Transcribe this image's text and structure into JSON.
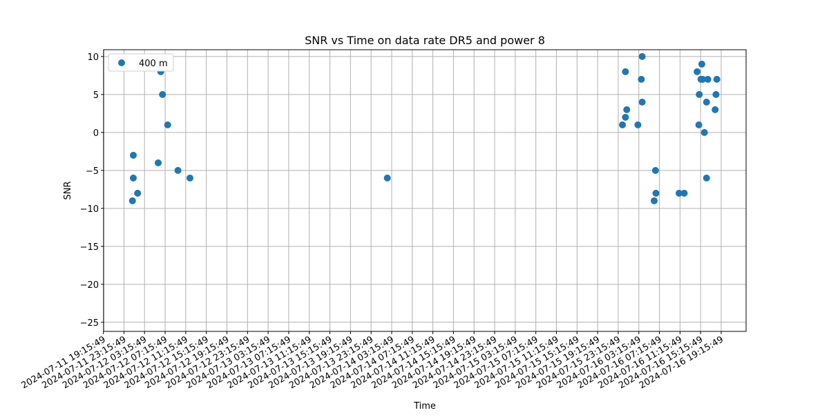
{
  "chart_data": {
    "type": "scatter",
    "title": "SNR vs Time on data rate DR5 and power 8",
    "xlabel": "Time",
    "ylabel": "SNR",
    "grid": true,
    "legend_position": "top-left",
    "x_axis": {
      "type": "time",
      "range": [
        "2024-07-11 19:19",
        "2024-07-17 00:06"
      ],
      "tick_labels": [
        "2024-07-11 19:15:49",
        "2024-07-11 23:15:49",
        "2024-07-12 03:15:49",
        "2024-07-12 07:15:49",
        "2024-07-12 11:15:49",
        "2024-07-12 15:15:49",
        "2024-07-12 19:15:49",
        "2024-07-12 23:15:49",
        "2024-07-13 03:15:49",
        "2024-07-13 07:15:49",
        "2024-07-13 11:15:49",
        "2024-07-13 15:15:49",
        "2024-07-13 19:15:49",
        "2024-07-13 23:15:49",
        "2024-07-14 03:15:49",
        "2024-07-14 07:15:49",
        "2024-07-14 11:15:49",
        "2024-07-14 15:15:49",
        "2024-07-14 19:15:49",
        "2024-07-14 23:15:49",
        "2024-07-15 03:15:49",
        "2024-07-15 07:15:49",
        "2024-07-15 11:15:49",
        "2024-07-15 15:15:49",
        "2024-07-15 19:15:49",
        "2024-07-15 23:15:49",
        "2024-07-16 03:15:49",
        "2024-07-16 07:15:49",
        "2024-07-16 11:15:49",
        "2024-07-16 15:15:49",
        "2024-07-16 19:15:49"
      ]
    },
    "y_axis": {
      "range": [
        -26.2,
        10.9
      ],
      "ticks": [
        10,
        5,
        0,
        -5,
        -10,
        -15,
        -20,
        -25
      ],
      "tick_labels": [
        "10",
        "5",
        "0",
        "−5",
        "−10",
        "−15",
        "−20",
        "−25"
      ]
    },
    "series": [
      {
        "name": "400 m",
        "color": "#1f77b4",
        "marker": "circle",
        "points": [
          {
            "x": "2024-07-12 00:55",
            "y": -9
          },
          {
            "x": "2024-07-12 01:05",
            "y": -3
          },
          {
            "x": "2024-07-12 01:05",
            "y": -6
          },
          {
            "x": "2024-07-12 01:55",
            "y": -8
          },
          {
            "x": "2024-07-12 05:55",
            "y": -4
          },
          {
            "x": "2024-07-12 06:25",
            "y": 8
          },
          {
            "x": "2024-07-12 06:45",
            "y": 5
          },
          {
            "x": "2024-07-12 07:45",
            "y": 1
          },
          {
            "x": "2024-07-12 09:45",
            "y": -5
          },
          {
            "x": "2024-07-12 12:05",
            "y": -6
          },
          {
            "x": "2024-07-14 02:25",
            "y": -6
          },
          {
            "x": "2024-07-16 00:05",
            "y": 1
          },
          {
            "x": "2024-07-16 00:40",
            "y": 8
          },
          {
            "x": "2024-07-16 00:40",
            "y": 2
          },
          {
            "x": "2024-07-16 00:55",
            "y": 3
          },
          {
            "x": "2024-07-16 03:05",
            "y": 1
          },
          {
            "x": "2024-07-16 03:45",
            "y": 7
          },
          {
            "x": "2024-07-16 03:55",
            "y": 10
          },
          {
            "x": "2024-07-16 03:55",
            "y": 4
          },
          {
            "x": "2024-07-16 06:15",
            "y": -9
          },
          {
            "x": "2024-07-16 06:30",
            "y": -5
          },
          {
            "x": "2024-07-16 06:35",
            "y": -8
          },
          {
            "x": "2024-07-16 11:05",
            "y": -8
          },
          {
            "x": "2024-07-16 12:05",
            "y": -8
          },
          {
            "x": "2024-07-16 14:35",
            "y": 8
          },
          {
            "x": "2024-07-16 14:55",
            "y": 1
          },
          {
            "x": "2024-07-16 15:00",
            "y": 5
          },
          {
            "x": "2024-07-16 15:20",
            "y": 7
          },
          {
            "x": "2024-07-16 15:30",
            "y": 9
          },
          {
            "x": "2024-07-16 15:40",
            "y": 7
          },
          {
            "x": "2024-07-16 16:00",
            "y": 0
          },
          {
            "x": "2024-07-16 16:25",
            "y": -6
          },
          {
            "x": "2024-07-16 16:25",
            "y": 4
          },
          {
            "x": "2024-07-16 16:40",
            "y": 7
          },
          {
            "x": "2024-07-16 18:05",
            "y": 3
          },
          {
            "x": "2024-07-16 18:15",
            "y": 5
          },
          {
            "x": "2024-07-16 18:25",
            "y": 7
          }
        ]
      }
    ]
  }
}
